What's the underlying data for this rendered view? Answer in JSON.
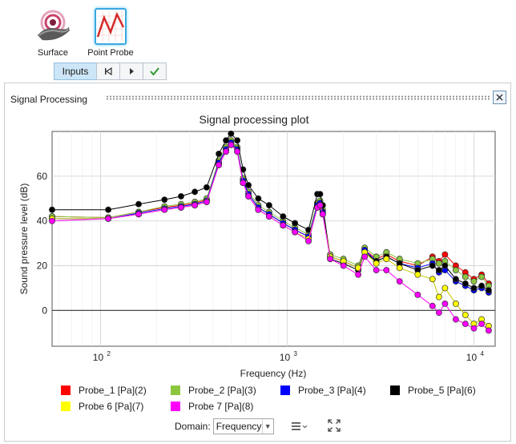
{
  "tools": {
    "surface_label": "Surface",
    "probe_label": "Point Probe"
  },
  "toolbar": {
    "inputs_label": "Inputs"
  },
  "panel": {
    "title": "Signal Processing"
  },
  "chart_data": {
    "type": "scatter",
    "title": "Signal processing plot",
    "xlabel": "Frequency (Hz)",
    "ylabel": "Sound pressure level (dB)",
    "xscale": "log",
    "xlim": [
      55,
      13000
    ],
    "ylim": [
      -16,
      80
    ],
    "xticks": [
      100,
      1000,
      10000
    ],
    "xtick_labels": [
      "10",
      "10",
      "10"
    ],
    "xtick_exponents": [
      "2",
      "3",
      "4"
    ],
    "yticks": [
      0,
      20,
      40,
      60
    ],
    "yticks_labels": [
      "0",
      "20",
      "40",
      "60"
    ],
    "grid": true,
    "legend_position": "bottom",
    "series": [
      {
        "name": "Probe_1 [Pa](2)",
        "color": "#ff0000",
        "x": [
          55,
          110,
          160,
          220,
          270,
          320,
          370,
          430,
          470,
          500,
          540,
          580,
          620,
          700,
          800,
          950,
          1100,
          1300,
          1450,
          1500,
          1550,
          1700,
          2000,
          2400,
          2600,
          3000,
          3400,
          4000,
          5000,
          6000,
          6500,
          7000,
          8000,
          9000,
          10000,
          11000,
          12000
        ],
        "y": [
          42,
          41.5,
          44,
          46,
          47,
          48,
          49.5,
          66,
          72,
          75,
          72,
          58,
          52,
          46,
          43,
          39,
          36,
          33,
          47,
          48,
          44,
          24,
          22,
          19,
          27,
          23,
          25,
          22,
          20,
          24,
          22,
          25,
          20,
          17,
          14,
          16,
          12
        ]
      },
      {
        "name": "Probe_2 [Pa](3)",
        "color": "#8cc63f",
        "x": [
          55,
          110,
          160,
          220,
          270,
          320,
          370,
          430,
          470,
          500,
          540,
          580,
          620,
          700,
          800,
          950,
          1100,
          1300,
          1450,
          1500,
          1550,
          1700,
          2000,
          2400,
          2600,
          3000,
          3400,
          4000,
          5000,
          6000,
          6500,
          7000,
          8000,
          9000,
          10000,
          11000,
          12000
        ],
        "y": [
          42,
          41.5,
          44,
          46.5,
          47.5,
          48.5,
          50,
          67,
          73,
          76,
          73,
          59,
          53,
          47,
          44,
          40,
          37,
          34,
          48,
          49,
          45,
          25,
          23,
          20,
          28,
          24,
          26,
          23,
          21,
          23,
          21,
          22,
          18,
          15,
          13,
          15,
          11
        ]
      },
      {
        "name": "Probe_3 [Pa](4)",
        "color": "#0000ff",
        "x": [
          55,
          110,
          160,
          220,
          270,
          320,
          370,
          430,
          470,
          500,
          540,
          580,
          620,
          700,
          800,
          950,
          1100,
          1300,
          1450,
          1500,
          1550,
          1700,
          2000,
          2400,
          2600,
          3000,
          3400,
          4000,
          5000,
          6000,
          6500,
          7000,
          8000,
          9000,
          10000,
          11000,
          12000
        ],
        "y": [
          41,
          41,
          43.5,
          45.5,
          46.5,
          47.5,
          49,
          66,
          72,
          75,
          72,
          58,
          52,
          46,
          43,
          39,
          36,
          33,
          47,
          48,
          44,
          24,
          22,
          19,
          27,
          22,
          24,
          21,
          19,
          21,
          17,
          18,
          13,
          11,
          9,
          10,
          8
        ]
      },
      {
        "name": "Probe_5 [Pa](6)",
        "color": "#000000",
        "x": [
          55,
          110,
          160,
          220,
          270,
          320,
          370,
          430,
          470,
          500,
          540,
          580,
          620,
          700,
          800,
          950,
          1100,
          1300,
          1450,
          1500,
          1550,
          1700,
          2000,
          2400,
          2600,
          3000,
          3400,
          4000,
          5000,
          6000,
          6500,
          7000,
          8000,
          9000,
          10000,
          11000,
          12000
        ],
        "y": [
          45,
          45,
          47.5,
          49.5,
          51,
          53,
          55,
          70,
          76,
          79,
          76,
          63,
          56,
          50,
          47,
          42,
          39,
          36,
          52,
          52,
          47,
          23,
          21,
          18,
          26,
          22,
          24,
          21,
          18,
          20,
          18,
          20,
          14,
          12,
          10,
          11,
          9
        ]
      },
      {
        "name": "Probe 6 [Pa](7)",
        "color": "#ffff00",
        "x": [
          55,
          110,
          160,
          220,
          270,
          320,
          370,
          430,
          470,
          500,
          540,
          580,
          620,
          700,
          800,
          950,
          1100,
          1300,
          1450,
          1500,
          1550,
          1700,
          2000,
          2400,
          2600,
          3000,
          3400,
          4000,
          5000,
          6000,
          6500,
          7000,
          8000,
          9000,
          10000,
          11000,
          12000
        ],
        "y": [
          41,
          41,
          43,
          45,
          46,
          47,
          48.5,
          65,
          71,
          74,
          71,
          57,
          51,
          45,
          42,
          38,
          35,
          32,
          46,
          47,
          43,
          24,
          22,
          19,
          26,
          21,
          23,
          19,
          16,
          14,
          6,
          10,
          3,
          -2,
          -6,
          -4,
          -7
        ]
      },
      {
        "name": "Probe 7 [Pa](8)",
        "color": "#ff00ff",
        "x": [
          55,
          110,
          160,
          220,
          270,
          320,
          370,
          430,
          470,
          500,
          540,
          580,
          620,
          700,
          800,
          950,
          1100,
          1300,
          1450,
          1500,
          1550,
          1700,
          2000,
          2400,
          2600,
          3000,
          3400,
          4000,
          5000,
          6000,
          6500,
          7000,
          8000,
          9000,
          10000,
          11000,
          12000
        ],
        "y": [
          40,
          41,
          43,
          45,
          46,
          47,
          48.5,
          65,
          71,
          74,
          71,
          57,
          51,
          45,
          42,
          38,
          35,
          31,
          46,
          47,
          43,
          23,
          20,
          16,
          24,
          18,
          18,
          13,
          7,
          2,
          -1,
          3,
          -4,
          -6,
          -8,
          -6,
          -9
        ]
      }
    ]
  },
  "controls": {
    "domain_label": "Domain:",
    "domain_value": "Frequency"
  }
}
